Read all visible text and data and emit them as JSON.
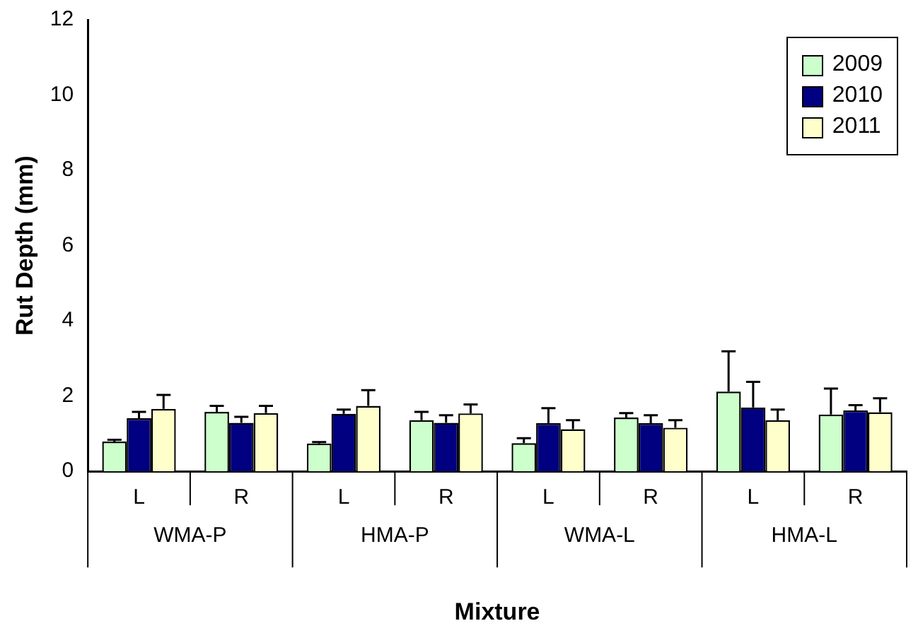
{
  "chart_data": {
    "type": "bar",
    "xlabel": "Mixture",
    "ylabel": "Rut Depth (mm)",
    "categories": [
      "L",
      "R",
      "L",
      "R",
      "L",
      "R",
      "L",
      "R"
    ],
    "annotations": [
      "WMA-P",
      "HMA-P",
      "WMA-L",
      "HMA-L"
    ],
    "series": [
      {
        "name": "2009",
        "color": "#ccffcc",
        "values": [
          0.79,
          1.58,
          0.74,
          1.36,
          0.75,
          1.43,
          2.12,
          1.51
        ],
        "errors": [
          0.05,
          0.16,
          0.04,
          0.22,
          0.13,
          0.12,
          1.07,
          0.69
        ]
      },
      {
        "name": "2010",
        "color": "#000080",
        "values": [
          1.41,
          1.29,
          1.53,
          1.29,
          1.28,
          1.28,
          1.7,
          1.62
        ],
        "errors": [
          0.17,
          0.16,
          0.11,
          0.2,
          0.4,
          0.21,
          0.68,
          0.14
        ]
      },
      {
        "name": "2011",
        "color": "#ffffcc",
        "values": [
          1.66,
          1.55,
          1.74,
          1.54,
          1.12,
          1.16,
          1.36,
          1.57
        ],
        "errors": [
          0.37,
          0.19,
          0.42,
          0.24,
          0.24,
          0.2,
          0.28,
          0.37
        ]
      }
    ],
    "ylim": [
      0,
      12
    ],
    "yticks": [
      0,
      2,
      4,
      6,
      8,
      10,
      12
    ],
    "grid": false,
    "legend": "top right"
  }
}
